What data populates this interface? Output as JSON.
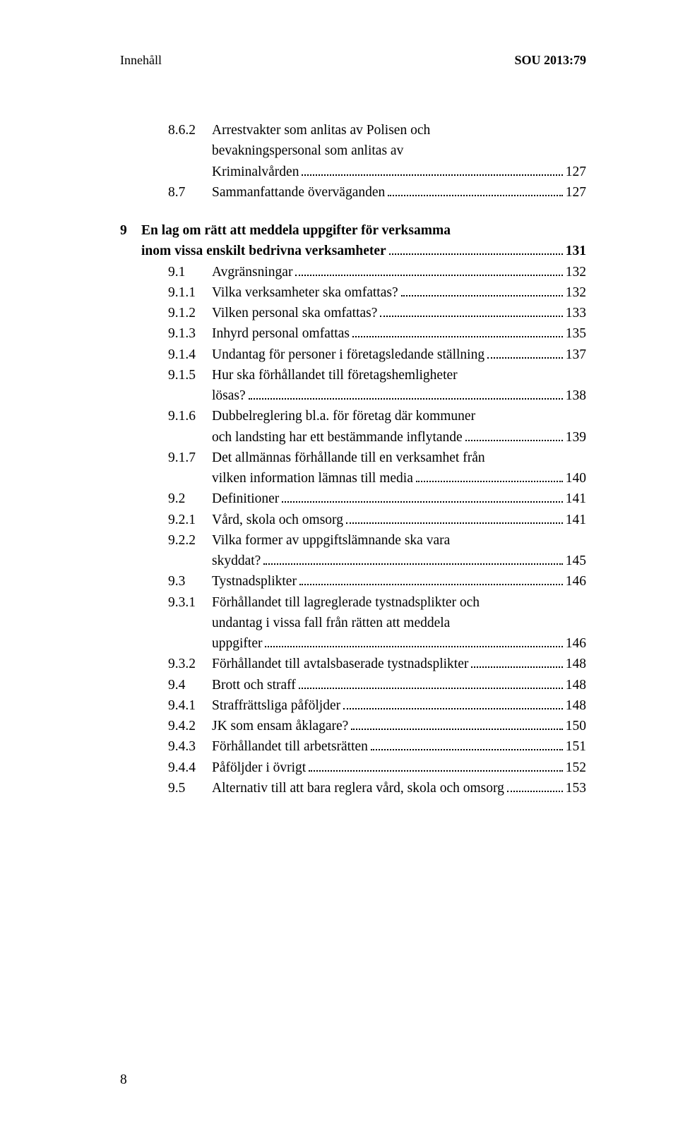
{
  "header": {
    "left": "Innehåll",
    "right": "SOU 2013:79"
  },
  "page_number": "8",
  "lines": [
    {
      "cls": "indent-1",
      "num": "8.6.2",
      "numcls": "num-w2",
      "text": "Arrestvakter som anlitas av Polisen och",
      "page": ""
    },
    {
      "cls": "cont-2",
      "num": "",
      "numcls": "",
      "text": "bevakningspersonal som anlitas av",
      "page": ""
    },
    {
      "cls": "cont-2",
      "num": "",
      "numcls": "",
      "text": "Kriminalvården",
      "page": "127"
    },
    {
      "cls": "indent-1",
      "num": "8.7",
      "numcls": "num-w1",
      "text": "Sammanfattande överväganden",
      "page": "127"
    },
    {
      "cls": "indent-0 group-gap",
      "num": "9",
      "numcls": "num-ch",
      "bold": true,
      "text": "En lag om rätt att meddela uppgifter för verksamma",
      "page": ""
    },
    {
      "cls": "indent-0",
      "num": "",
      "numcls": "num-ch",
      "bold": true,
      "text": "inom vissa enskilt bedrivna verksamheter",
      "page": "131"
    },
    {
      "cls": "indent-1",
      "num": "9.1",
      "numcls": "num-w1",
      "text": "Avgränsningar",
      "page": "132"
    },
    {
      "cls": "indent-2",
      "num": "9.1.1",
      "numcls": "num-w2",
      "text": "Vilka verksamheter ska omfattas?",
      "page": "132"
    },
    {
      "cls": "indent-2",
      "num": "9.1.2",
      "numcls": "num-w2",
      "text": "Vilken personal ska omfattas?",
      "page": "133"
    },
    {
      "cls": "indent-2",
      "num": "9.1.3",
      "numcls": "num-w2",
      "text": "Inhyrd personal omfattas",
      "page": "135"
    },
    {
      "cls": "indent-2",
      "num": "9.1.4",
      "numcls": "num-w2",
      "text": "Undantag för personer i företagsledande ställning",
      "page": "137"
    },
    {
      "cls": "indent-2",
      "num": "9.1.5",
      "numcls": "num-w2",
      "text": "Hur ska förhållandet till företagshemligheter",
      "page": ""
    },
    {
      "cls": "cont-2",
      "num": "",
      "numcls": "",
      "text": "lösas?",
      "page": "138"
    },
    {
      "cls": "indent-2",
      "num": "9.1.6",
      "numcls": "num-w2",
      "text": "Dubbelreglering bl.a. för företag där kommuner",
      "page": ""
    },
    {
      "cls": "cont-2",
      "num": "",
      "numcls": "",
      "text": "och landsting har ett bestämmande inflytande",
      "page": "139"
    },
    {
      "cls": "indent-2",
      "num": "9.1.7",
      "numcls": "num-w2",
      "text": "Det allmännas förhållande till en verksamhet från",
      "page": ""
    },
    {
      "cls": "cont-2",
      "num": "",
      "numcls": "",
      "text": "vilken information lämnas till media",
      "page": "140"
    },
    {
      "cls": "indent-1",
      "num": "9.2",
      "numcls": "num-w1",
      "text": "Definitioner",
      "page": "141"
    },
    {
      "cls": "indent-2",
      "num": "9.2.1",
      "numcls": "num-w2",
      "text": "Vård, skola och omsorg",
      "page": "141"
    },
    {
      "cls": "indent-2",
      "num": "9.2.2",
      "numcls": "num-w2",
      "text": "Vilka former av uppgiftslämnande ska vara",
      "page": ""
    },
    {
      "cls": "cont-2",
      "num": "",
      "numcls": "",
      "text": "skyddat?",
      "page": "145"
    },
    {
      "cls": "indent-1",
      "num": "9.3",
      "numcls": "num-w1",
      "text": "Tystnadsplikter",
      "page": "146"
    },
    {
      "cls": "indent-2",
      "num": "9.3.1",
      "numcls": "num-w2",
      "text": "Förhållandet till lagreglerade tystnadsplikter och",
      "page": ""
    },
    {
      "cls": "cont-2",
      "num": "",
      "numcls": "",
      "text": "undantag i vissa fall från rätten att meddela",
      "page": ""
    },
    {
      "cls": "cont-2",
      "num": "",
      "numcls": "",
      "text": "uppgifter",
      "page": "146"
    },
    {
      "cls": "indent-2",
      "num": "9.3.2",
      "numcls": "num-w2",
      "text": "Förhållandet till avtalsbaserade tystnadsplikter",
      "page": "148"
    },
    {
      "cls": "indent-1",
      "num": "9.4",
      "numcls": "num-w1",
      "text": "Brott och straff",
      "page": "148"
    },
    {
      "cls": "indent-2",
      "num": "9.4.1",
      "numcls": "num-w2",
      "text": "Straffrättsliga påföljder",
      "page": "148"
    },
    {
      "cls": "indent-2",
      "num": "9.4.2",
      "numcls": "num-w2",
      "text": "JK som ensam åklagare?",
      "page": "150"
    },
    {
      "cls": "indent-2",
      "num": "9.4.3",
      "numcls": "num-w2",
      "text": "Förhållandet till arbetsrätten",
      "page": "151"
    },
    {
      "cls": "indent-2",
      "num": "9.4.4",
      "numcls": "num-w2",
      "text": "Påföljder i övrigt",
      "page": "152"
    },
    {
      "cls": "indent-1",
      "num": "9.5",
      "numcls": "num-w1",
      "text": "Alternativ till att bara reglera vård, skola och omsorg",
      "page": "153"
    }
  ]
}
